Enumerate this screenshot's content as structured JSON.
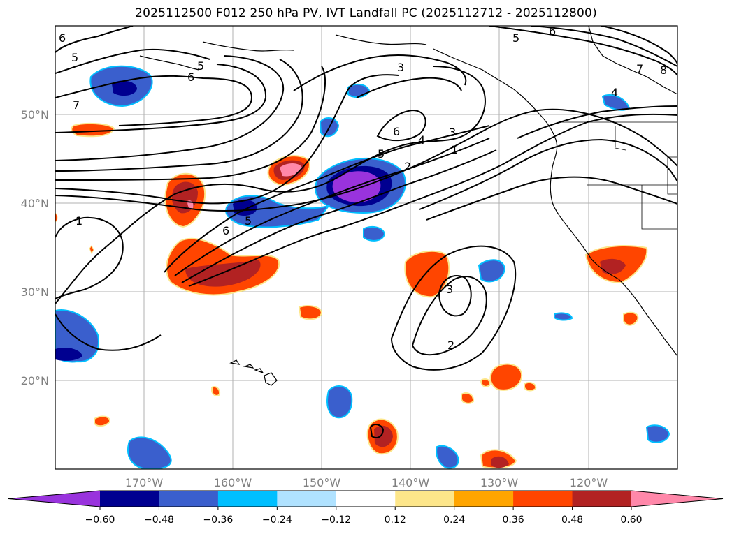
{
  "title": "2025112500 F012 250 hPa PV, IVT Landfall PC (2025112712 - 2025112800)",
  "map": {
    "projection": "PlateCarree",
    "lon_range": [
      -180,
      -110
    ],
    "lat_range": [
      10,
      60
    ],
    "gridlines": true,
    "coastlines": true,
    "state_borders": true
  },
  "axes": {
    "lon_ticks": [
      "170°W",
      "160°W",
      "150°W",
      "140°W",
      "130°W",
      "120°W"
    ],
    "lat_ticks": [
      "20°N",
      "30°N",
      "40°N",
      "50°N"
    ]
  },
  "colorbar": {
    "orientation": "horizontal",
    "extend": "both",
    "tick_labels": [
      "−0.60",
      "−0.48",
      "−0.36",
      "−0.24",
      "−0.12",
      "0.12",
      "0.24",
      "0.36",
      "0.48",
      "0.60"
    ],
    "bounds": [
      -0.6,
      -0.48,
      -0.36,
      -0.24,
      -0.12,
      0.12,
      0.24,
      0.36,
      0.48,
      0.6
    ],
    "colors": [
      "#9933dd",
      "#000090",
      "#3a5fcd",
      "#00bfff",
      "#b0e2ff",
      "#ffffff",
      "#fde68a",
      "#ffa500",
      "#ff4500",
      "#b22222",
      "#ff88aa"
    ]
  },
  "contour_labels": [
    "6",
    "5",
    "5",
    "6",
    "7",
    "3",
    "6",
    "5",
    "4",
    "3",
    "1",
    "2",
    "1",
    "6",
    "5",
    "3",
    "2",
    "5",
    "6",
    "7",
    "8",
    "4"
  ]
}
